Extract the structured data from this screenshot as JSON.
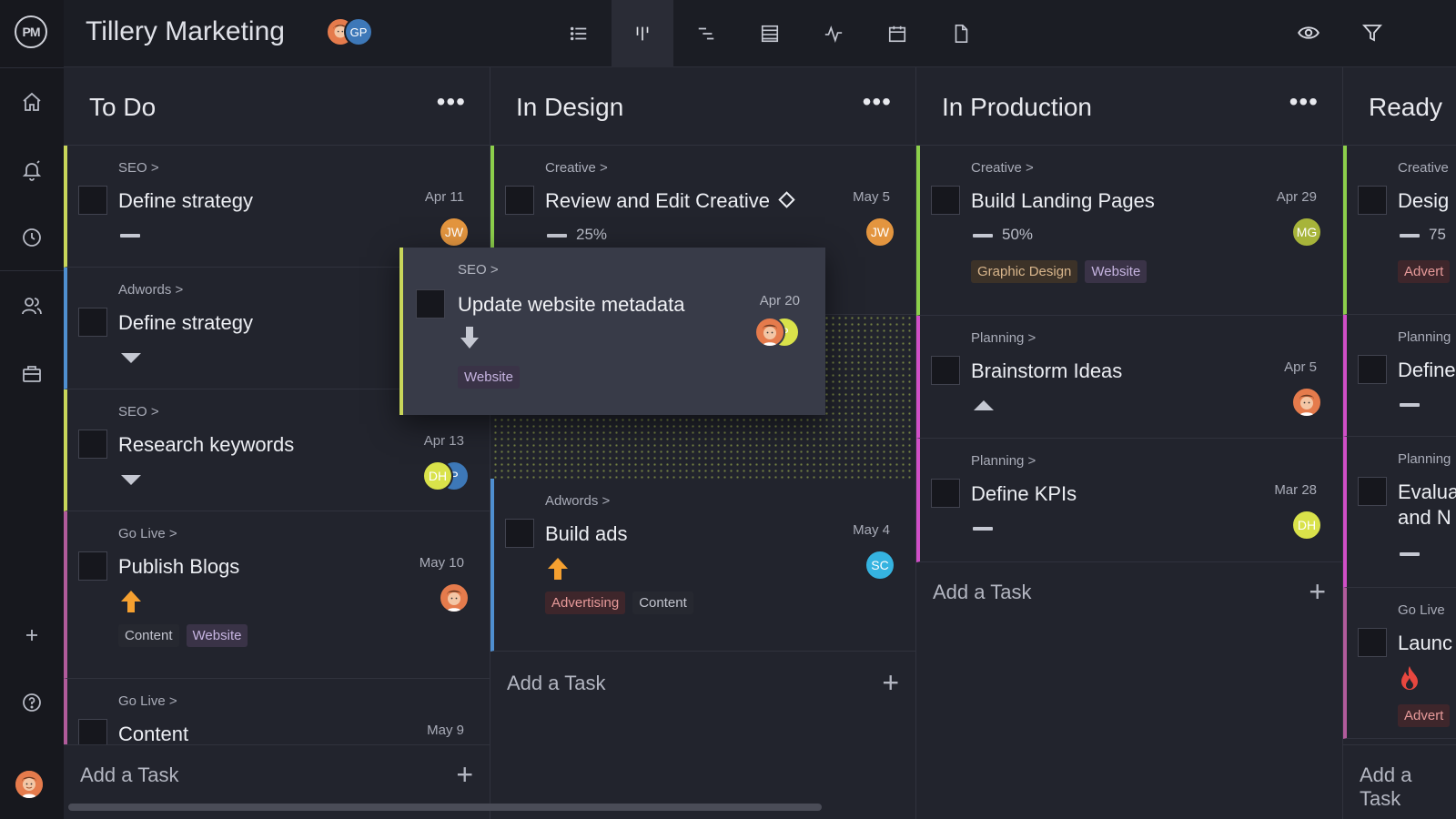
{
  "app": {
    "logo": "PM",
    "project_title": "Tillery Marketing"
  },
  "header": {
    "members": [
      {
        "initials": "",
        "color": "#e57b4c"
      },
      {
        "initials": "GP",
        "color": "#3d78b8"
      }
    ],
    "views": [
      "list-view-icon",
      "board-view-icon",
      "gantt-view-icon",
      "sheet-view-icon",
      "dashboard-view-icon",
      "calendar-view-icon",
      "files-view-icon"
    ],
    "active_view": "board-view-icon",
    "tools": [
      "eye-icon",
      "filter-icon"
    ]
  },
  "rail": {
    "items": [
      "home-icon",
      "notifications-icon",
      "time-icon",
      "team-icon",
      "portfolio-icon",
      "add-icon",
      "help-icon"
    ]
  },
  "colors": {
    "seo": "#c8d65a",
    "adwords": "#4f8fd0",
    "golive": "#b15b9b",
    "creative": "#8ccf4b",
    "planning": "#d04fc7",
    "orange": "#f5a030"
  },
  "columns": [
    {
      "title": "To Do",
      "more": "•••",
      "cards": [
        {
          "crumb": "SEO >",
          "name": "Define strategy",
          "date": "Apr 11",
          "priority": "medium",
          "assignees": [
            {
              "initials": "JW",
              "color": "#e3953f"
            }
          ]
        },
        {
          "crumb": "Adwords >",
          "name": "Define strategy",
          "date": "",
          "priority": "low",
          "assignees": []
        },
        {
          "crumb": "SEO >",
          "name": "Research keywords",
          "date": "Apr 13",
          "priority": "low",
          "assignees": [
            {
              "initials": "DH",
              "color": "#d9e24a"
            },
            {
              "initials": "P",
              "color": "#3d78b8"
            }
          ]
        },
        {
          "crumb": "Go Live >",
          "name": "Publish Blogs",
          "date": "May 10",
          "priority": "high",
          "tags": [
            "Content",
            "Website"
          ]
        },
        {
          "crumb": "Go Live >",
          "name": "Content",
          "date": "May 9"
        }
      ],
      "add_label": "Add a Task"
    },
    {
      "title": "In Design",
      "more": "•••",
      "cards": [
        {
          "crumb": "Creative >",
          "name": "Review and Edit Creative",
          "date": "May 5",
          "percent": "25%",
          "assignees": [
            {
              "initials": "JW",
              "color": "#e3953f"
            }
          ]
        },
        {
          "crumb": "Adwords >",
          "name": "Build ads",
          "date": "May 4",
          "priority": "high",
          "tags": [
            "Advertising",
            "Content"
          ],
          "assignees": [
            {
              "initials": "SC",
              "color": "#35b3e0"
            }
          ]
        }
      ],
      "add_label": "Add a Task"
    },
    {
      "title": "In Production",
      "more": "•••",
      "cards": [
        {
          "crumb": "Creative >",
          "name": "Build Landing Pages",
          "date": "Apr 29",
          "percent": "50%",
          "tags": [
            "Graphic Design",
            "Website"
          ],
          "assignees": [
            {
              "initials": "MG",
              "color": "#a7b43a"
            }
          ]
        },
        {
          "crumb": "Planning >",
          "name": "Brainstorm Ideas",
          "date": "Apr 5",
          "priority": "critical"
        },
        {
          "crumb": "Planning >",
          "name": "Define KPIs",
          "date": "Mar 28",
          "priority": "medium",
          "assignees": [
            {
              "initials": "DH",
              "color": "#d9e24a"
            }
          ]
        }
      ],
      "add_label": "Add a Task"
    },
    {
      "title": "Ready",
      "cards": [
        {
          "crumb": "Creative",
          "name": "Desig",
          "percent": "75",
          "tags": [
            "Advert"
          ]
        },
        {
          "crumb": "Planning",
          "name": "Define"
        },
        {
          "crumb": "Planning",
          "name": "Evalua",
          "name2": "and N"
        },
        {
          "crumb": "Go Live",
          "name": "Launc",
          "tags": [
            "Advert"
          ]
        }
      ],
      "add_label": "Add a Task"
    }
  ],
  "dragging_card": {
    "crumb": "SEO >",
    "name": "Update website metadata",
    "date": "Apr 20",
    "priority": "lowest",
    "tags": [
      "Website"
    ],
    "assignees": [
      {
        "initials": "",
        "color": "#e57b4c"
      },
      {
        "initials": "P",
        "color": "#d9e24a"
      }
    ]
  }
}
